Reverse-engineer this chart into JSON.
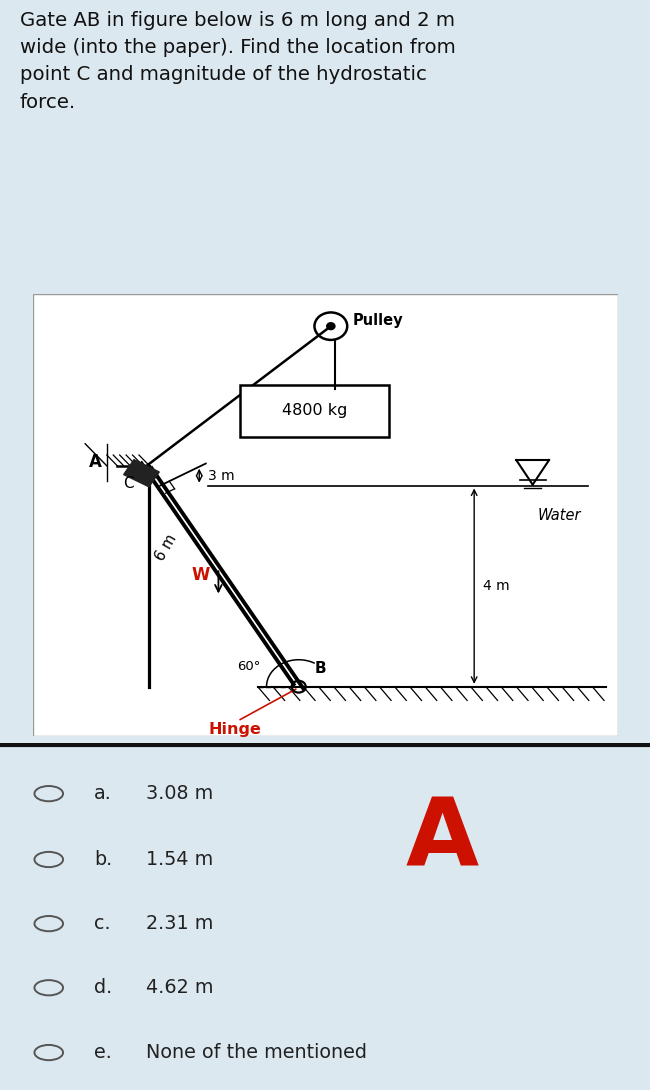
{
  "title_text": "Gate AB in figure below is 6 m long and 2 m\nwide (into the paper). Find the location from\npoint C and magnitude of the hydrostatic\nforce.",
  "bg_color": "#dce8f0",
  "bg_color_opts": "#e8ecf0",
  "diagram_bg": "#ffffff",
  "options": [
    {
      "label": "a.",
      "value": "3.08 m"
    },
    {
      "label": "b.",
      "value": "1.54 m"
    },
    {
      "label": "c.",
      "value": "2.31 m"
    },
    {
      "label": "d.",
      "value": "4.62 m"
    },
    {
      "label": "e.",
      "value": "None of the mentioned"
    }
  ],
  "correct_answer": "A",
  "answer_color": "#cc1100",
  "text_color": "#111111",
  "option_text_color": "#222222",
  "hinge_color": "#cc1100",
  "W_color": "#cc1100"
}
